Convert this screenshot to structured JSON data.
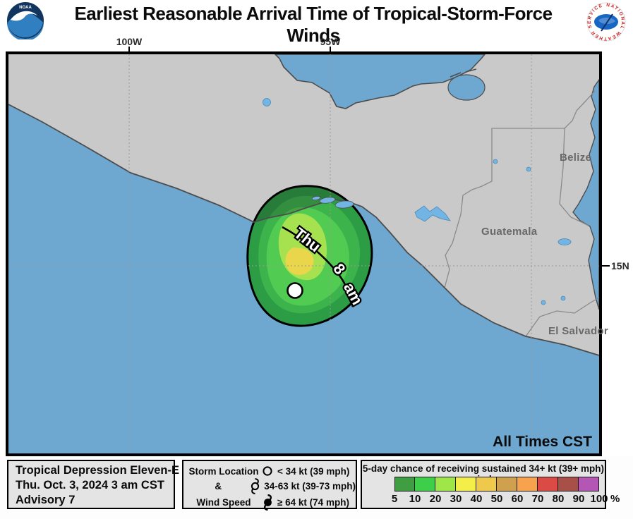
{
  "header": {
    "title": "Earliest Reasonable Arrival Time of Tropical-Storm-Force Winds",
    "noaa_logo_text": "NOAA",
    "nws_logo_text": "NATIONAL WEATHER SERVICE"
  },
  "map": {
    "lon_labels": [
      "100W",
      "95W"
    ],
    "lat_labels": [
      "15N"
    ],
    "places": {
      "guatemala": "Guatemala",
      "belize": "Belize",
      "el_salvador": "El Salvador"
    },
    "arrival_label": {
      "word1": "Thu",
      "word2": "8",
      "word3": "am"
    },
    "footer_note": "All Times CST",
    "colors": {
      "ocean": "#6ea7cf",
      "land": "#c9c9c9",
      "lake": "#72b4e4",
      "coast": "#4d4d4d",
      "country_border": "#8a8a8a",
      "swath_levels": [
        "#2c9c45",
        "#3cb34b",
        "#52cb52",
        "#a6e24f",
        "#e9d64b"
      ]
    }
  },
  "info_box": {
    "line1": "Tropical Depression Eleven-E",
    "line2": "Thu. Oct. 3, 2024  3 am CST",
    "line3": "Advisory 7"
  },
  "symbol_legend": {
    "label_line1": "Storm Location",
    "label_line2": "&",
    "label_line3": "Wind Speed",
    "items": [
      {
        "symbol": "disturbance-circle",
        "label": "< 34 kt (39 mph)"
      },
      {
        "symbol": "tropical-storm",
        "label": "34-63 kt (39-73 mph)"
      },
      {
        "symbol": "hurricane",
        "label": "≥ 64 kt (74 mph)"
      }
    ]
  },
  "scale_legend": {
    "title": "5-day chance of receiving sustained 34+ kt (39+ mph) winds",
    "colors": [
      "#3f9e42",
      "#3ecf4a",
      "#9fe649",
      "#f4ef48",
      "#eec94b",
      "#cfa14e",
      "#f7a24c",
      "#dc4a45",
      "#a85048",
      "#b457b4"
    ],
    "labels": [
      "5",
      "10",
      "20",
      "30",
      "40",
      "50",
      "60",
      "70",
      "80",
      "90",
      "100"
    ],
    "unit": "%"
  }
}
